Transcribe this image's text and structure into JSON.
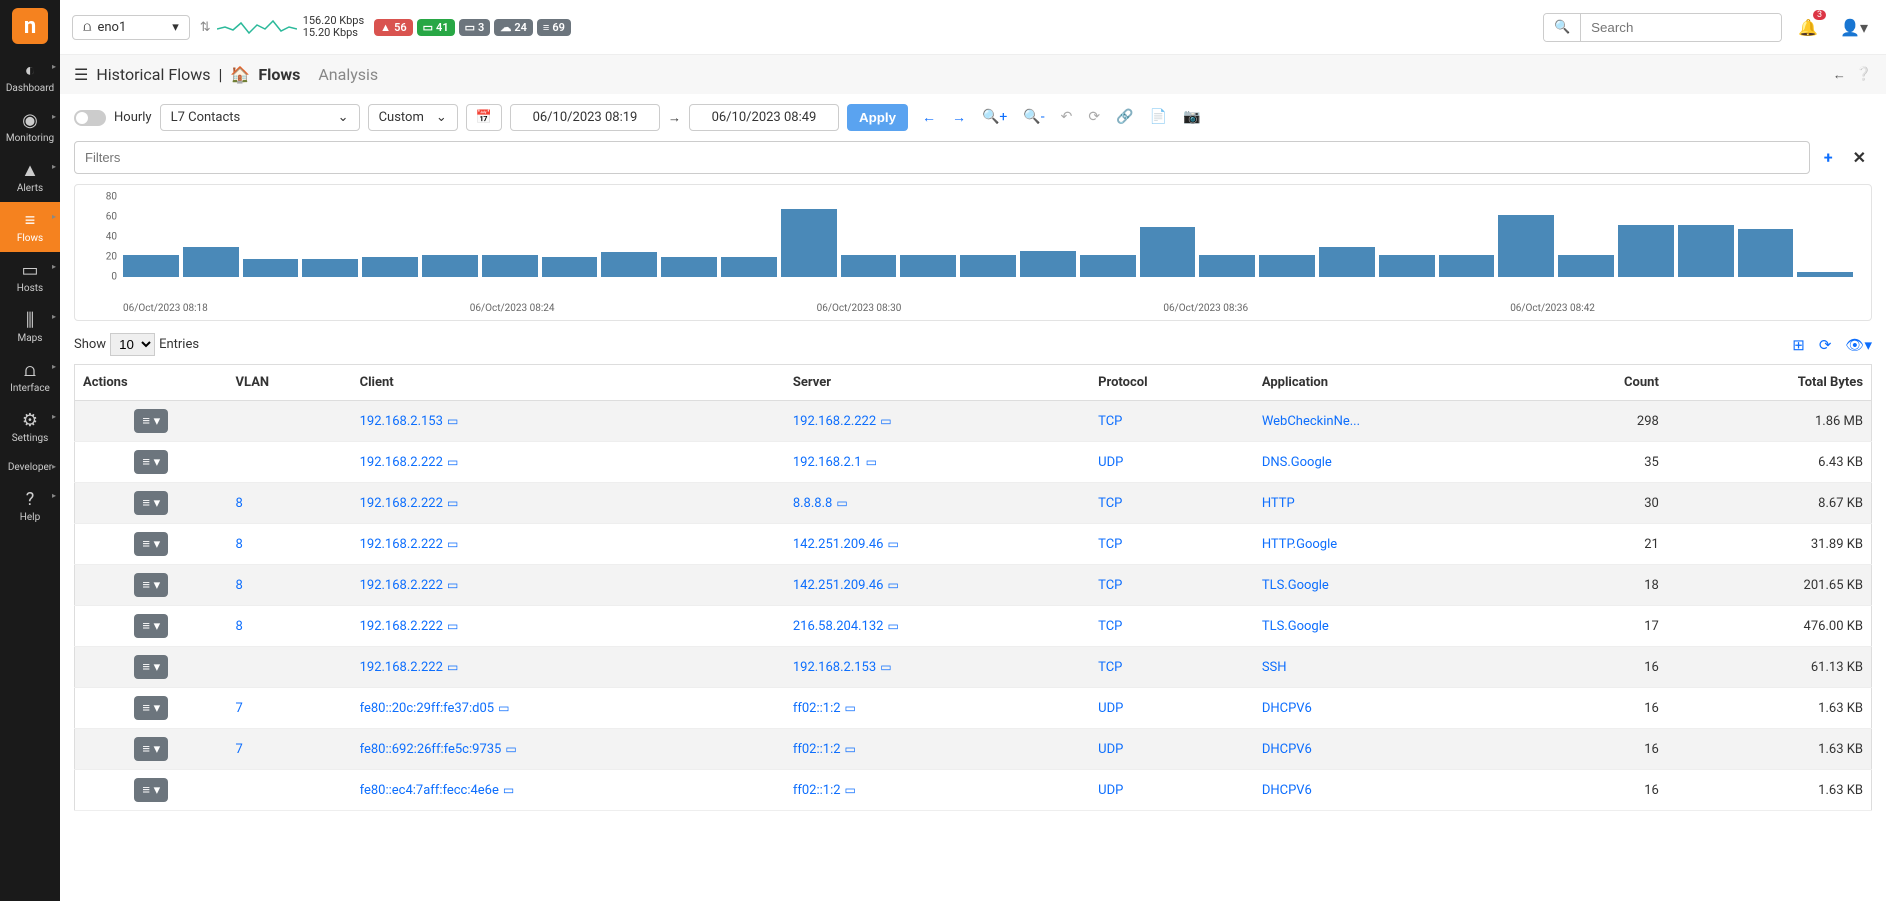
{
  "sidebar": {
    "logo": "n",
    "items": [
      {
        "label": "Dashboard",
        "icon": "◐"
      },
      {
        "label": "Monitoring",
        "icon": "◉"
      },
      {
        "label": "Alerts",
        "icon": "▲"
      },
      {
        "label": "Flows",
        "icon": "≡",
        "active": true
      },
      {
        "label": "Hosts",
        "icon": "▭"
      },
      {
        "label": "Maps",
        "icon": "⫼"
      },
      {
        "label": "Interface",
        "icon": "⩍"
      },
      {
        "label": "Settings",
        "icon": "⚙"
      },
      {
        "label": "Developer",
        "icon": "</>"
      },
      {
        "label": "Help",
        "icon": "?"
      }
    ]
  },
  "topbar": {
    "interface": "eno1",
    "up_speed": "156.20 Kbps",
    "down_speed": "15.20 Kbps",
    "badges": [
      {
        "text": "56",
        "icon": "▲",
        "bg": "#d9534f"
      },
      {
        "text": "41",
        "icon": "▭",
        "bg": "#28a745"
      },
      {
        "text": "3",
        "icon": "▭",
        "bg": "#6c757d"
      },
      {
        "text": "24",
        "icon": "☁",
        "bg": "#6c757d"
      },
      {
        "text": "69",
        "icon": "≡",
        "bg": "#6c757d"
      }
    ],
    "search_placeholder": "Search",
    "notif_count": "3"
  },
  "crumb": {
    "root": "Historical Flows",
    "current": "Flows",
    "analysis": "Analysis"
  },
  "controls": {
    "hourly_label": "Hourly",
    "metric": "L7 Contacts",
    "range": "Custom",
    "from": "06/10/2023 08:19",
    "to": "06/10/2023 08:49",
    "apply": "Apply"
  },
  "filters": {
    "placeholder": "Filters"
  },
  "chart": {
    "ymax": 80,
    "yticks": [
      80,
      60,
      40,
      20,
      0
    ],
    "bars": [
      22,
      30,
      18,
      18,
      20,
      22,
      22,
      20,
      25,
      20,
      20,
      68,
      22,
      22,
      22,
      26,
      22,
      50,
      22,
      22,
      30,
      22,
      22,
      62,
      22,
      52,
      52,
      48,
      5
    ],
    "bar_color": "#4a89b8",
    "xlabels": [
      "06/Oct/2023 08:18",
      "06/Oct/2023 08:24",
      "06/Oct/2023 08:30",
      "06/Oct/2023 08:36",
      "06/Oct/2023 08:42"
    ]
  },
  "entries": {
    "show": "Show",
    "n": "10",
    "label": "Entries"
  },
  "table": {
    "columns": [
      "Actions",
      "VLAN",
      "Client",
      "Server",
      "Protocol",
      "Application",
      "Count",
      "Total Bytes"
    ],
    "rows": [
      {
        "vlan": "",
        "client": "192.168.2.153",
        "server": "192.168.2.222",
        "proto": "TCP",
        "app": "WebCheckinNe...",
        "count": "298",
        "bytes": "1.86 MB"
      },
      {
        "vlan": "",
        "client": "192.168.2.222",
        "server": "192.168.2.1",
        "proto": "UDP",
        "app": "DNS.Google",
        "count": "35",
        "bytes": "6.43 KB"
      },
      {
        "vlan": "8",
        "client": "192.168.2.222",
        "server": "8.8.8.8",
        "proto": "TCP",
        "app": "HTTP",
        "count": "30",
        "bytes": "8.67 KB"
      },
      {
        "vlan": "8",
        "client": "192.168.2.222",
        "server": "142.251.209.46",
        "proto": "TCP",
        "app": "HTTP.Google",
        "count": "21",
        "bytes": "31.89 KB"
      },
      {
        "vlan": "8",
        "client": "192.168.2.222",
        "server": "142.251.209.46",
        "proto": "TCP",
        "app": "TLS.Google",
        "count": "18",
        "bytes": "201.65 KB"
      },
      {
        "vlan": "8",
        "client": "192.168.2.222",
        "server": "216.58.204.132",
        "proto": "TCP",
        "app": "TLS.Google",
        "count": "17",
        "bytes": "476.00 KB"
      },
      {
        "vlan": "",
        "client": "192.168.2.222",
        "server": "192.168.2.153",
        "proto": "TCP",
        "app": "SSH",
        "count": "16",
        "bytes": "61.13 KB"
      },
      {
        "vlan": "7",
        "client": "fe80::20c:29ff:fe37:d05",
        "server": "ff02::1:2",
        "proto": "UDP",
        "app": "DHCPV6",
        "count": "16",
        "bytes": "1.63 KB"
      },
      {
        "vlan": "7",
        "client": "fe80::692:26ff:fe5c:9735",
        "server": "ff02::1:2",
        "proto": "UDP",
        "app": "DHCPV6",
        "count": "16",
        "bytes": "1.63 KB"
      },
      {
        "vlan": "",
        "client": "fe80::ec4:7aff:fecc:4e6e",
        "server": "ff02::1:2",
        "proto": "UDP",
        "app": "DHCPV6",
        "count": "16",
        "bytes": "1.63 KB"
      }
    ]
  }
}
